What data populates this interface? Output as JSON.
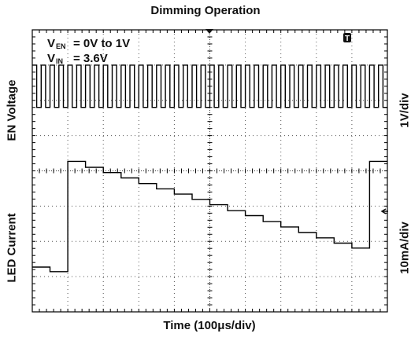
{
  "chart_data": {
    "type": "line",
    "title": "Dimming Operation",
    "xlabel": "Time (100μs/div)",
    "ylabel_top": "EN Voltage",
    "ylabel_bottom": "LED Current",
    "scale_top": "1V/div",
    "scale_bottom": "10mA/div",
    "annotations": {
      "ven_label": "V",
      "ven_sub": "EN",
      "ven_value": "= 0V to 1V",
      "vin_label": "V",
      "vin_sub": "IN",
      "vin_value": "= 3.6V",
      "trigger_marker": "T"
    },
    "x_divisions": 10,
    "y_divisions": 8,
    "grid": true,
    "series": [
      {
        "x_us": [
          0,
          12.5,
          25,
          37.5,
          50,
          62.5,
          75,
          87.5,
          100,
          112.5,
          125,
          137.5,
          150,
          162.5,
          175,
          187.5,
          200,
          212.5,
          225,
          237.5,
          250,
          262.5,
          275,
          287.5,
          300,
          312.5,
          325,
          337.5,
          350,
          362.5,
          375,
          387.5,
          400,
          412.5,
          425,
          437.5,
          450,
          462.5,
          475,
          487.5,
          500,
          512.5,
          525,
          537.5,
          550,
          562.5,
          575,
          587.5,
          600,
          612.5,
          625,
          637.5,
          650,
          662.5,
          675,
          687.5,
          700,
          712.5,
          725,
          737.5,
          750,
          762.5,
          775,
          787.5,
          800,
          812.5,
          825,
          837.5,
          850,
          862.5,
          875,
          887.5,
          900,
          912.5,
          925,
          937.5,
          950,
          962.5,
          975,
          987.5
        ],
        "y_div": [
          3.0,
          1.8,
          3.0,
          1.8,
          3.0,
          1.8,
          3.0,
          1.8,
          3.0,
          1.8,
          3.0,
          1.8,
          3.0,
          1.8,
          3.0,
          1.8,
          3.0,
          1.8,
          3.0,
          1.8,
          3.0,
          1.8,
          3.0,
          1.8,
          3.0,
          1.8,
          3.0,
          1.8,
          3.0,
          1.8,
          3.0,
          1.8,
          3.0,
          1.8,
          3.0,
          1.8,
          3.0,
          1.8,
          3.0,
          1.8,
          3.0,
          1.8,
          3.0,
          1.8,
          3.0,
          1.8,
          3.0,
          1.8,
          3.0,
          1.8,
          3.0,
          1.8,
          3.0,
          1.8,
          3.0,
          1.8,
          3.0,
          1.8,
          3.0,
          1.8,
          3.0,
          1.8,
          3.0,
          1.8,
          3.0,
          1.8,
          3.0,
          1.8,
          3.0,
          1.8,
          3.0,
          1.8,
          3.0,
          1.8,
          3.0,
          1.8,
          3.0,
          1.8,
          3.0,
          1.8
        ]
      },
      {
        "x_us": [
          0,
          50,
          100,
          150,
          200,
          250,
          300,
          350,
          400,
          450,
          500,
          550,
          600,
          650,
          700,
          750,
          800,
          850,
          900,
          950
        ],
        "y_div": [
          -2.73,
          -2.86,
          0.27,
          0.1,
          -0.05,
          -0.2,
          -0.36,
          -0.51,
          -0.66,
          -0.81,
          -0.96,
          -1.13,
          -1.27,
          -1.44,
          -1.59,
          -1.75,
          -1.9,
          -2.05,
          -2.19,
          0.27
        ]
      }
    ]
  }
}
